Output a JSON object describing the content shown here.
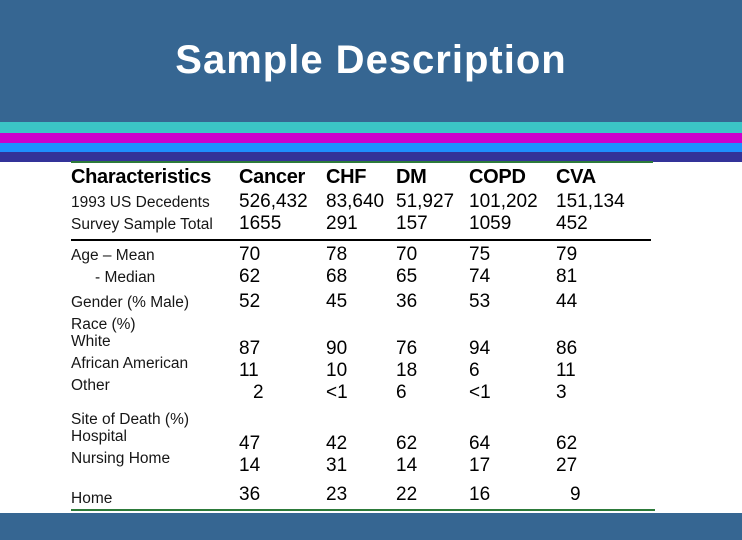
{
  "slide": {
    "title": "Sample Description"
  },
  "colors": {
    "top_band": "#366692",
    "bottom_band": "#366692",
    "stripe_teal": "#3BC4C6",
    "stripe_magenta": "#CC00CC",
    "stripe_blue": "#1E90FF",
    "stripe_navy": "#333399",
    "rule_green": "#2D7A3A",
    "rule_black": "#000000"
  },
  "table": {
    "columns": [
      "Characteristics",
      "Cancer",
      "CHF",
      "DM",
      "COPD",
      "CVA"
    ],
    "rows": [
      {
        "label": "1993 US Decedents",
        "values": [
          "526,432",
          "83,640",
          "51,927",
          "101,202",
          "151,134"
        ]
      },
      {
        "label": "Survey Sample Total",
        "values": [
          "1655",
          "291",
          "157",
          "1059",
          "452"
        ],
        "divider_after": true
      },
      {
        "label": "Age – Mean",
        "values": [
          "70",
          "78",
          "70",
          "75",
          "79"
        ]
      },
      {
        "label": "- Median",
        "values": [
          "62",
          "68",
          "65",
          "74",
          "81"
        ],
        "cls": "indent-label"
      },
      {
        "label": "Gender (% Male)",
        "values": [
          "52",
          "45",
          "36",
          "53",
          "44"
        ],
        "cls": "gap-sm"
      },
      {
        "label": "Race (%)",
        "values": [
          "",
          "",
          "",
          "",
          ""
        ],
        "cls": "gap-sm"
      },
      {
        "label": "White",
        "values": [
          "87",
          "90",
          "76",
          "94",
          "86"
        ],
        "cls": "lead"
      },
      {
        "label": "African American",
        "values": [
          "11",
          "10",
          "18",
          "6",
          "11"
        ],
        "cls": "lead"
      },
      {
        "label": "Other",
        "values": [
          "2",
          "<1",
          "6",
          "<1",
          "3"
        ],
        "cls": "lead",
        "indent_cols": [
          0
        ]
      },
      {
        "label": "Site of Death (%)",
        "values": [
          "",
          "",
          "",
          "",
          ""
        ],
        "cls": "gap-md"
      },
      {
        "label": "Hospital",
        "values": [
          "47",
          "42",
          "62",
          "64",
          "62"
        ],
        "cls": "lead"
      },
      {
        "label": "Nursing Home",
        "values": [
          "14",
          "31",
          "14",
          "17",
          "27"
        ],
        "cls": "lead"
      },
      {
        "label": "Home",
        "values": [
          "36",
          "23",
          "22",
          "16",
          "9"
        ],
        "cls": "gap-md lag",
        "indent_cols": [
          4
        ]
      }
    ]
  }
}
